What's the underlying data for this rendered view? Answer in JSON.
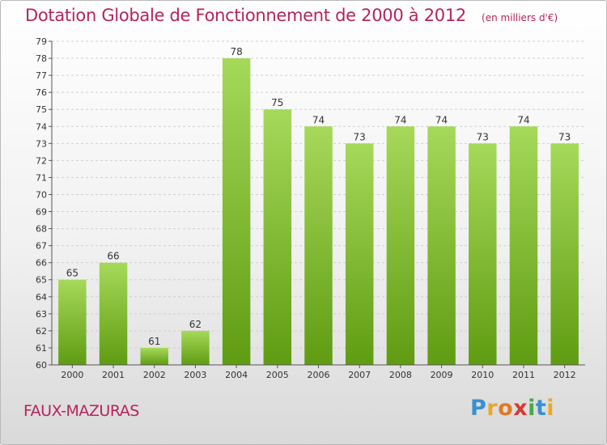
{
  "title": "Dotation Globale de Fonctionnement de 2000 à 2012",
  "subtitle": "(en milliers d'€)",
  "commune": "FAUX-MAZURAS",
  "brand": {
    "letters": [
      "P",
      "r",
      "o",
      "x",
      "i",
      "t",
      "i"
    ],
    "colors": [
      "#3a8fd0",
      "#e8a82a",
      "#e07a20",
      "#d23c32",
      "#4aa84a",
      "#3a8fd0",
      "#e8a82a"
    ]
  },
  "colors": {
    "bar_top": "#a6d95a",
    "bar_bottom": "#5f9c12",
    "accent": "#b5245c",
    "grid": "#cfcfcf"
  },
  "chart_data": {
    "type": "bar",
    "categories": [
      "2000",
      "2001",
      "2002",
      "2003",
      "2004",
      "2005",
      "2006",
      "2007",
      "2008",
      "2009",
      "2010",
      "2011",
      "2012"
    ],
    "values": [
      65,
      66,
      61,
      62,
      78,
      75,
      74,
      73,
      74,
      74,
      73,
      74,
      73
    ],
    "ylim": [
      60,
      79
    ],
    "yticks": [
      60,
      61,
      62,
      63,
      64,
      65,
      66,
      67,
      68,
      69,
      70,
      71,
      72,
      73,
      74,
      75,
      76,
      77,
      78,
      79
    ],
    "grid": "horizontal dashed",
    "xlabel": "",
    "ylabel": ""
  }
}
